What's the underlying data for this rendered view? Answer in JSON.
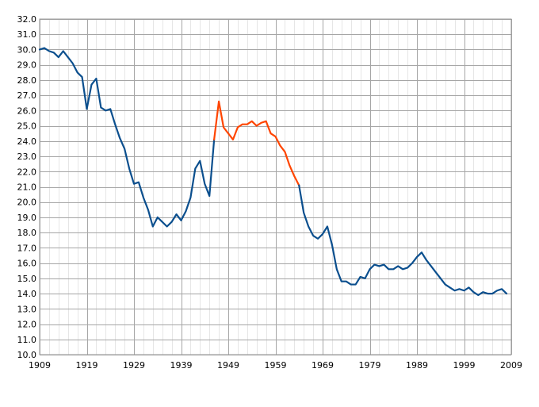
{
  "chart_data": {
    "type": "line",
    "title": "",
    "xlabel": "",
    "ylabel": "",
    "xlim": [
      1909,
      2009
    ],
    "ylim": [
      10,
      32
    ],
    "x_ticks": [
      1909,
      1919,
      1929,
      1939,
      1949,
      1959,
      1969,
      1979,
      1989,
      1999,
      2009
    ],
    "x_tick_labels": [
      "1909",
      "1919",
      "1929",
      "1939",
      "1949",
      "1959",
      "1969",
      "1979",
      "1989",
      "1999",
      "2009"
    ],
    "y_ticks": [
      10,
      11,
      12,
      13,
      14,
      15,
      16,
      17,
      18,
      19,
      20,
      21,
      22,
      23,
      24,
      25,
      26,
      27,
      28,
      29,
      30,
      31,
      32
    ],
    "y_tick_labels": [
      "10.0",
      "11.0",
      "12.0",
      "13.0",
      "14.0",
      "15.0",
      "16.0",
      "17.0",
      "18.0",
      "19.0",
      "20.0",
      "21.0",
      "22.0",
      "23.0",
      "24.0",
      "25.0",
      "26.0",
      "27.0",
      "28.0",
      "29.0",
      "30.0",
      "31.0",
      "32.0"
    ],
    "grid": true,
    "legend": "none",
    "series": [
      {
        "color": "#0b4f8e",
        "points": [
          [
            1909,
            30.0
          ],
          [
            1910,
            30.1
          ],
          [
            1911,
            29.9
          ],
          [
            1912,
            29.8
          ],
          [
            1913,
            29.5
          ],
          [
            1914,
            29.9
          ],
          [
            1915,
            29.5
          ],
          [
            1916,
            29.1
          ],
          [
            1917,
            28.5
          ],
          [
            1918,
            28.2
          ],
          [
            1919,
            26.1
          ],
          [
            1920,
            27.7
          ],
          [
            1921,
            28.1
          ],
          [
            1922,
            26.2
          ],
          [
            1923,
            26.0
          ],
          [
            1924,
            26.1
          ],
          [
            1925,
            25.1
          ],
          [
            1926,
            24.2
          ],
          [
            1927,
            23.5
          ],
          [
            1928,
            22.2
          ],
          [
            1929,
            21.2
          ],
          [
            1930,
            21.3
          ],
          [
            1931,
            20.3
          ],
          [
            1932,
            19.5
          ],
          [
            1933,
            18.4
          ],
          [
            1934,
            19.0
          ],
          [
            1935,
            18.7
          ],
          [
            1936,
            18.4
          ],
          [
            1937,
            18.7
          ],
          [
            1938,
            19.2
          ],
          [
            1939,
            18.8
          ],
          [
            1940,
            19.4
          ],
          [
            1941,
            20.3
          ],
          [
            1942,
            22.2
          ],
          [
            1943,
            22.7
          ],
          [
            1944,
            21.2
          ],
          [
            1945,
            20.4
          ],
          [
            1946,
            24.1
          ]
        ]
      },
      {
        "color": "#ff4500",
        "points": [
          [
            1946,
            24.1
          ],
          [
            1947,
            26.6
          ],
          [
            1948,
            24.9
          ],
          [
            1949,
            24.5
          ],
          [
            1950,
            24.1
          ],
          [
            1951,
            24.9
          ],
          [
            1952,
            25.1
          ],
          [
            1953,
            25.1
          ],
          [
            1954,
            25.3
          ],
          [
            1955,
            25.0
          ],
          [
            1956,
            25.2
          ],
          [
            1957,
            25.3
          ],
          [
            1958,
            24.5
          ],
          [
            1959,
            24.3
          ],
          [
            1960,
            23.7
          ],
          [
            1961,
            23.3
          ],
          [
            1962,
            22.4
          ],
          [
            1963,
            21.7
          ],
          [
            1964,
            21.1
          ]
        ]
      },
      {
        "color": "#0b4f8e",
        "points": [
          [
            1964,
            21.1
          ],
          [
            1965,
            19.3
          ],
          [
            1966,
            18.4
          ],
          [
            1967,
            17.8
          ],
          [
            1968,
            17.6
          ],
          [
            1969,
            17.9
          ],
          [
            1970,
            18.4
          ],
          [
            1971,
            17.2
          ],
          [
            1972,
            15.6
          ],
          [
            1973,
            14.8
          ],
          [
            1974,
            14.8
          ],
          [
            1975,
            14.6
          ],
          [
            1976,
            14.6
          ],
          [
            1977,
            15.1
          ],
          [
            1978,
            15.0
          ],
          [
            1979,
            15.6
          ],
          [
            1980,
            15.9
          ],
          [
            1981,
            15.8
          ],
          [
            1982,
            15.9
          ],
          [
            1983,
            15.6
          ],
          [
            1984,
            15.6
          ],
          [
            1985,
            15.8
          ],
          [
            1986,
            15.6
          ],
          [
            1987,
            15.7
          ],
          [
            1988,
            16.0
          ],
          [
            1989,
            16.4
          ],
          [
            1990,
            16.7
          ],
          [
            1991,
            16.2
          ],
          [
            1992,
            15.8
          ],
          [
            1993,
            15.4
          ],
          [
            1994,
            15.0
          ],
          [
            1995,
            14.6
          ],
          [
            1996,
            14.4
          ],
          [
            1997,
            14.2
          ],
          [
            1998,
            14.3
          ],
          [
            1999,
            14.2
          ],
          [
            2000,
            14.4
          ],
          [
            2001,
            14.1
          ],
          [
            2002,
            13.9
          ],
          [
            2003,
            14.1
          ],
          [
            2004,
            14.0
          ],
          [
            2005,
            14.0
          ],
          [
            2006,
            14.2
          ],
          [
            2007,
            14.3
          ],
          [
            2008,
            14.0
          ]
        ]
      }
    ]
  }
}
